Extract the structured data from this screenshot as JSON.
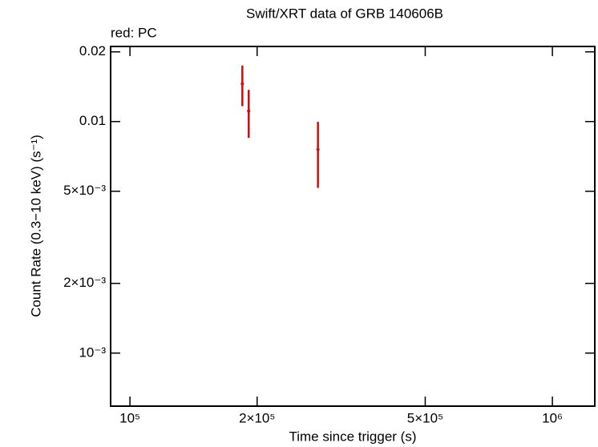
{
  "chart_data": {
    "type": "errorbar-scatter",
    "title": "Swift/XRT data of GRB 140606B",
    "subtitle": "red: PC",
    "xlabel": "Time since trigger (s)",
    "ylabel": "Count Rate (0.3−10 keV) (s⁻¹)",
    "xscale": "log",
    "yscale": "log",
    "xlim": [
      90000,
      1260000
    ],
    "ylim": [
      0.00059,
      0.0211
    ],
    "xticks": [
      {
        "value": 100000,
        "label": "10⁵"
      },
      {
        "value": 200000,
        "label": "2×10⁵"
      },
      {
        "value": 500000,
        "label": "5×10⁵"
      },
      {
        "value": 1000000,
        "label": "10⁶"
      }
    ],
    "yticks": [
      0.02,
      0.01,
      {
        "value": 0.005,
        "label": "5×10⁻³"
      },
      {
        "value": 0.002,
        "label": "2×10⁻³"
      },
      {
        "value": 0.001,
        "label": "10⁻³"
      }
    ],
    "series": [
      {
        "color": "#ee0000",
        "x": [
          184500,
          191000,
          278600
        ],
        "values": [
          0.01455,
          0.0111,
          0.00757
        ],
        "errors": [
          0.0029,
          0.0026,
          0.0024
        ]
      }
    ]
  }
}
